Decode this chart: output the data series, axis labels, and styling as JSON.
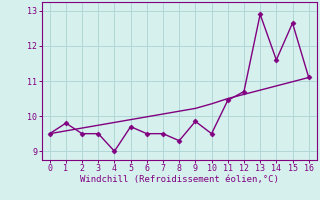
{
  "xlabel": "Windchill (Refroidissement éolien,°C)",
  "ylabel": "",
  "bg_color": "#d6f0ee",
  "grid_color": "#b0d8d6",
  "line_color": "#800080",
  "xlim": [
    -0.5,
    16.5
  ],
  "ylim": [
    8.75,
    13.25
  ],
  "xticks": [
    0,
    1,
    2,
    3,
    4,
    5,
    6,
    7,
    8,
    9,
    10,
    11,
    12,
    13,
    14,
    15,
    16
  ],
  "yticks": [
    9,
    10,
    11,
    12,
    13
  ],
  "data_x": [
    0,
    1,
    2,
    3,
    4,
    5,
    6,
    7,
    8,
    9,
    10,
    11,
    12,
    13,
    14,
    15,
    16
  ],
  "data_y": [
    9.5,
    9.8,
    9.5,
    9.5,
    9.0,
    9.7,
    9.5,
    9.5,
    9.3,
    9.85,
    9.5,
    10.45,
    10.7,
    12.9,
    11.6,
    12.65,
    11.1
  ],
  "trend_x": [
    0,
    1,
    2,
    3,
    4,
    5,
    6,
    7,
    8,
    9,
    10,
    11,
    12,
    13,
    14,
    15,
    16
  ],
  "trend_y": [
    9.5,
    9.58,
    9.66,
    9.74,
    9.82,
    9.9,
    9.98,
    10.06,
    10.14,
    10.22,
    10.35,
    10.5,
    10.62,
    10.74,
    10.86,
    10.98,
    11.1
  ],
  "marker": "D",
  "marker_size": 2.5,
  "line_width": 1.0,
  "title_fontsize": 6.5,
  "tick_fontsize": 6,
  "xlabel_fontsize": 6.5
}
